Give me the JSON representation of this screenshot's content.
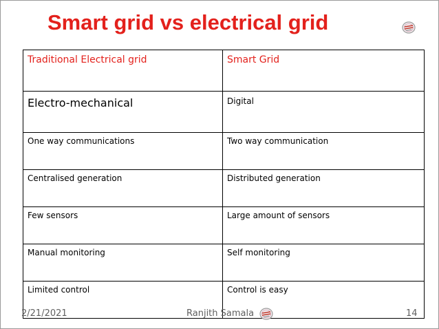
{
  "slide": {
    "title": "Smart grid vs electrical grid",
    "logo_icon": "emblem-icon",
    "colors": {
      "title": "#e3211c",
      "header_text": "#e3211c",
      "footer_text": "#5f5f5f"
    }
  },
  "table": {
    "header": [
      "Traditional Electrical grid",
      "Smart Grid"
    ],
    "rows": [
      [
        "Electro-mechanical",
        "Digital"
      ],
      [
        "One way communications",
        "Two way communication"
      ],
      [
        "Centralised generation",
        "Distributed generation"
      ],
      [
        "Few sensors",
        "Large amount of sensors"
      ],
      [
        "Manual monitoring",
        "Self monitoring"
      ],
      [
        "Limited control",
        "Control is easy"
      ]
    ]
  },
  "footer": {
    "date": "2/21/2021",
    "author": "Ranjith Samala",
    "page_number": "14"
  }
}
